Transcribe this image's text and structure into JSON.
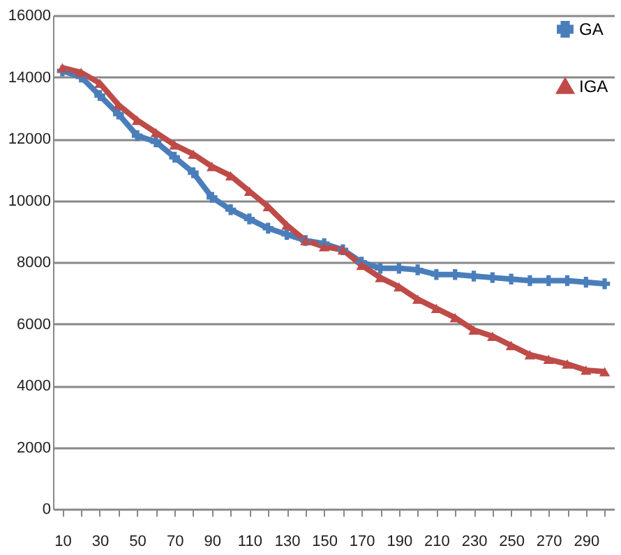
{
  "chart_data": {
    "type": "line",
    "categories": [
      "10",
      null,
      "30",
      null,
      "50",
      null,
      "70",
      null,
      "90",
      null,
      "110",
      null,
      "130",
      null,
      "150",
      null,
      "170",
      null,
      "190",
      null,
      "210",
      null,
      "230",
      null,
      "250",
      null,
      "270",
      null,
      "290",
      null
    ],
    "series": [
      {
        "name": "GA",
        "color": "#4a7ebb",
        "marker": "cross",
        "values": [
          14200,
          14000,
          13400,
          12800,
          12100,
          11900,
          11400,
          10900,
          10100,
          9700,
          9400,
          9100,
          8900,
          8700,
          8600,
          8400,
          8000,
          7800,
          7800,
          7750,
          7600,
          7600,
          7550,
          7500,
          7450,
          7400,
          7400,
          7400,
          7350,
          7300
        ]
      },
      {
        "name": "IGA",
        "color": "#be4b48",
        "marker": "triangle",
        "values": [
          14300,
          14150,
          13800,
          13100,
          12600,
          12200,
          11800,
          11500,
          11100,
          10800,
          10300,
          9800,
          9200,
          8700,
          8500,
          8400,
          7900,
          7500,
          7200,
          6800,
          6500,
          6200,
          5800,
          5600,
          5300,
          5000,
          4850,
          4700,
          4500,
          4450
        ]
      }
    ],
    "ylim": [
      0,
      16000
    ],
    "yticks": [
      0,
      2000,
      4000,
      6000,
      8000,
      10000,
      12000,
      14000,
      16000
    ],
    "grid": "y",
    "legend": "top right",
    "line_style": "solid"
  }
}
